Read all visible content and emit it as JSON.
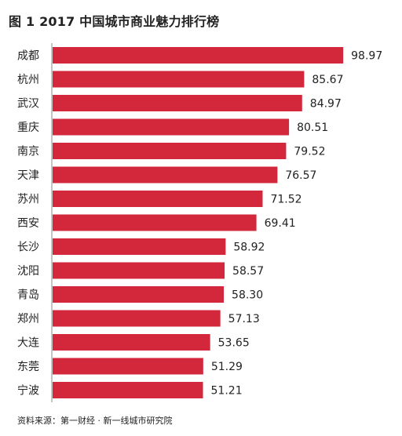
{
  "chart_data": {
    "type": "bar",
    "orientation": "horizontal",
    "title": "图 1  2017 中国城市商业魅力排行榜",
    "categories": [
      "成都",
      "杭州",
      "武汉",
      "重庆",
      "南京",
      "天津",
      "苏州",
      "西安",
      "长沙",
      "沈阳",
      "青岛",
      "郑州",
      "大连",
      "东莞",
      "宁波"
    ],
    "values": [
      98.97,
      85.67,
      84.97,
      80.51,
      79.52,
      76.57,
      71.52,
      69.41,
      58.92,
      58.57,
      58.3,
      57.13,
      53.65,
      51.29,
      51.21
    ],
    "value_labels": [
      "98.97",
      "85.67",
      "84.97",
      "80.51",
      "79.52",
      "76.57",
      "71.52",
      "69.41",
      "58.92",
      "58.57",
      "58.30",
      "57.13",
      "53.65",
      "51.29",
      "51.21"
    ],
    "bar_color": "#d3273c",
    "xlim": [
      0,
      100
    ],
    "grid": false,
    "legend": "none",
    "xlabel": "",
    "ylabel": ""
  },
  "source": "资料来源：第一财经 · 新一线城市研究院"
}
